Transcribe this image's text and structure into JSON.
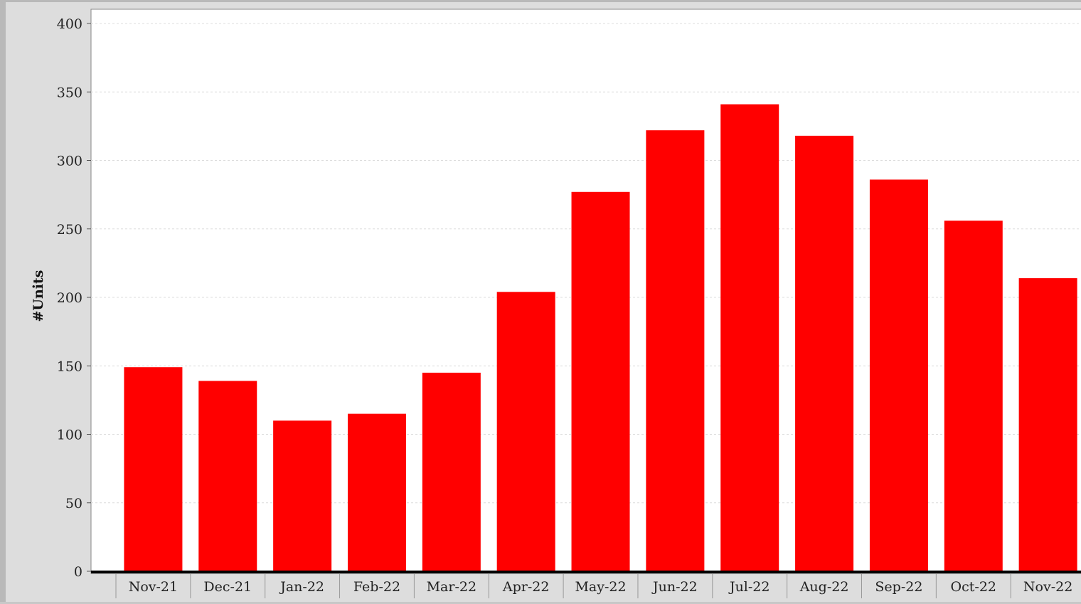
{
  "chart_data": {
    "type": "bar",
    "title": "",
    "xlabel": "",
    "ylabel": "#Units",
    "categories": [
      "Nov-21",
      "Dec-21",
      "Jan-22",
      "Feb-22",
      "Mar-22",
      "Apr-22",
      "May-22",
      "Jun-22",
      "Jul-22",
      "Aug-22",
      "Sep-22",
      "Oct-22",
      "Nov-22"
    ],
    "values": [
      149,
      139,
      110,
      115,
      145,
      204,
      277,
      322,
      341,
      318,
      286,
      256,
      214
    ],
    "ylim": [
      0,
      400
    ],
    "yticks": [
      0,
      50,
      100,
      150,
      200,
      250,
      300,
      350,
      400
    ],
    "grid": true,
    "legend": "none",
    "colors": {
      "bar": "#ff0000",
      "plot_background": "#ffffff",
      "gridline": "#dcdcdc"
    }
  }
}
